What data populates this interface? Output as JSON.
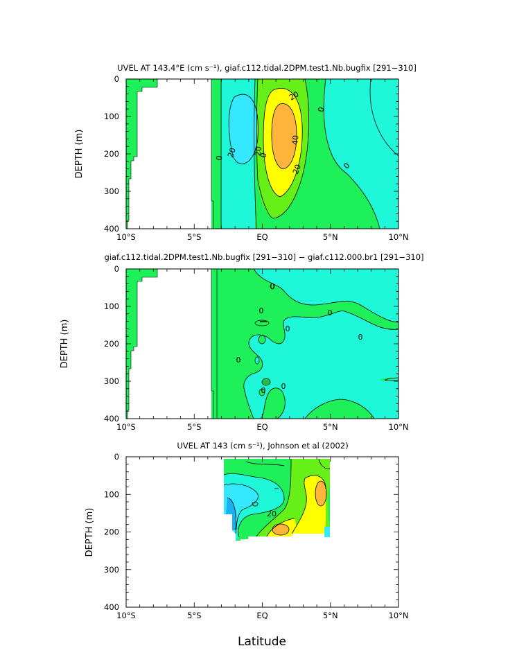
{
  "figure": {
    "xlabel": "Latitude"
  },
  "chart_data": [
    {
      "type": "heatmap",
      "title": "UVEL AT 143.4°E (cm s⁻¹), giaf.c112.tidal.2DPM.test1.Nb.bugfix [291−310]",
      "ylabel": "DEPTH (m)",
      "xlabel": "",
      "xlim": [
        -10,
        10
      ],
      "ylim": [
        400,
        0
      ],
      "xticks": [
        "10°S",
        "5°S",
        "EQ",
        "5°N",
        "10°N"
      ],
      "yticks": [
        "0",
        "100",
        "200",
        "300",
        "400"
      ],
      "contour_labels": [
        "0",
        "20",
        "20",
        "40",
        "20",
        "0",
        "0",
        "0",
        "20"
      ],
      "colors": {
        "cyan_dark": "#33e8ff",
        "cyan_light": "#1ff8d8",
        "green": "#1ef05a",
        "yellow_green": "#66f018",
        "yellow": "#ffff00",
        "orange": "#ffb43c"
      }
    },
    {
      "type": "heatmap",
      "title": "giaf.c112.tidal.2DPM.test1.Nb.bugfix [291−310] − giaf.c112.000.br1 [291−310]",
      "ylabel": "DEPTH (m)",
      "xlabel": "",
      "xlim": [
        -10,
        10
      ],
      "ylim": [
        400,
        0
      ],
      "xticks": [
        "10°S",
        "5°S",
        "EQ",
        "5°N",
        "10°N"
      ],
      "yticks": [
        "0",
        "100",
        "200",
        "300",
        "400"
      ],
      "contour_labels": [
        "0",
        "0",
        "0",
        "0",
        "0",
        "0",
        "0",
        "0"
      ],
      "colors": {
        "cyan_light": "#1ff8d8",
        "green": "#1ef05a",
        "dark_green": "#20c050"
      }
    },
    {
      "type": "heatmap",
      "title": "UVEL AT 143 (cm s⁻¹), Johnson et al (2002)",
      "ylabel": "DEPTH (m)",
      "xlabel": "Latitude",
      "xlim": [
        -10,
        10
      ],
      "ylim": [
        400,
        0
      ],
      "xticks": [
        "10°S",
        "5°S",
        "EQ",
        "5°N",
        "10°N"
      ],
      "yticks": [
        "0",
        "100",
        "200",
        "300",
        "400"
      ],
      "contour_labels": [
        "20"
      ],
      "colors": {
        "blue": "#18b0f0",
        "cyan_dark": "#33e8ff",
        "cyan_light": "#1ff8d8",
        "green": "#1ef05a",
        "yellow_green": "#66f018",
        "yellow": "#ffff00",
        "orange": "#ffb43c"
      }
    }
  ]
}
